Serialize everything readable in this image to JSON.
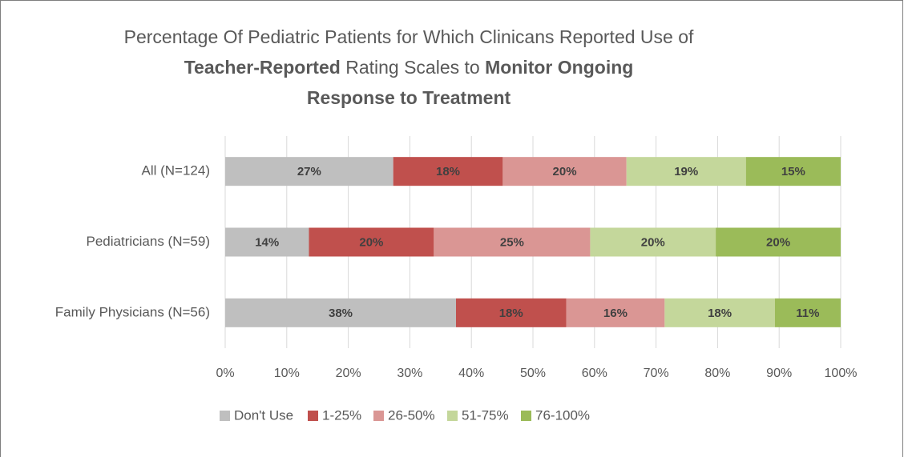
{
  "chart_data": {
    "type": "stacked-barh",
    "title": [
      [
        {
          "text": "Percentage Of Pediatric Patients for Which Clinicans Reported Use of",
          "bold": false
        }
      ],
      [
        {
          "text": "Teacher-Reported",
          "bold": true
        },
        {
          "text": " Rating Scales to ",
          "bold": false
        },
        {
          "text": "Monitor Ongoing",
          "bold": true
        }
      ],
      [
        {
          "text": "Response to Treatment",
          "bold": true
        }
      ]
    ],
    "categories": [
      "All (N=124)",
      "Pediatricians (N=59)",
      "Family Physicians (N=56)"
    ],
    "series": [
      {
        "name": "Don't Use",
        "color": "#bfbfbf",
        "values": [
          27.3,
          13.6,
          37.5
        ],
        "value_labels": [
          "27%",
          "14%",
          "38%"
        ]
      },
      {
        "name": "1-25%",
        "color": "#c0504d",
        "values": [
          17.8,
          20.3,
          17.9
        ],
        "value_labels": [
          "18%",
          "20%",
          "18%"
        ]
      },
      {
        "name": "26-50%",
        "color": "#da9694",
        "values": [
          20.1,
          25.4,
          16.0
        ],
        "value_labels": [
          "20%",
          "25%",
          "16%"
        ]
      },
      {
        "name": "51-75%",
        "color": "#c4d79b",
        "values": [
          19.4,
          20.4,
          17.9
        ],
        "value_labels": [
          "19%",
          "20%",
          "18%"
        ]
      },
      {
        "name": "76-100%",
        "color": "#9bbb59",
        "values": [
          15.4,
          20.3,
          10.7
        ],
        "value_labels": [
          "15%",
          "20%",
          "11%"
        ]
      }
    ],
    "xlim": [
      0,
      100
    ],
    "xticks": [
      {
        "value": 0,
        "label": "0%"
      },
      {
        "value": 10,
        "label": "10%"
      },
      {
        "value": 20,
        "label": "20%"
      },
      {
        "value": 30,
        "label": "30%"
      },
      {
        "value": 40,
        "label": "40%"
      },
      {
        "value": 50,
        "label": "50%"
      },
      {
        "value": 60,
        "label": "60%"
      },
      {
        "value": 70,
        "label": "70%"
      },
      {
        "value": 80,
        "label": "80%"
      },
      {
        "value": 90,
        "label": "90%"
      },
      {
        "value": 100,
        "label": "100%"
      }
    ],
    "grid": true,
    "legend": "bottom"
  }
}
